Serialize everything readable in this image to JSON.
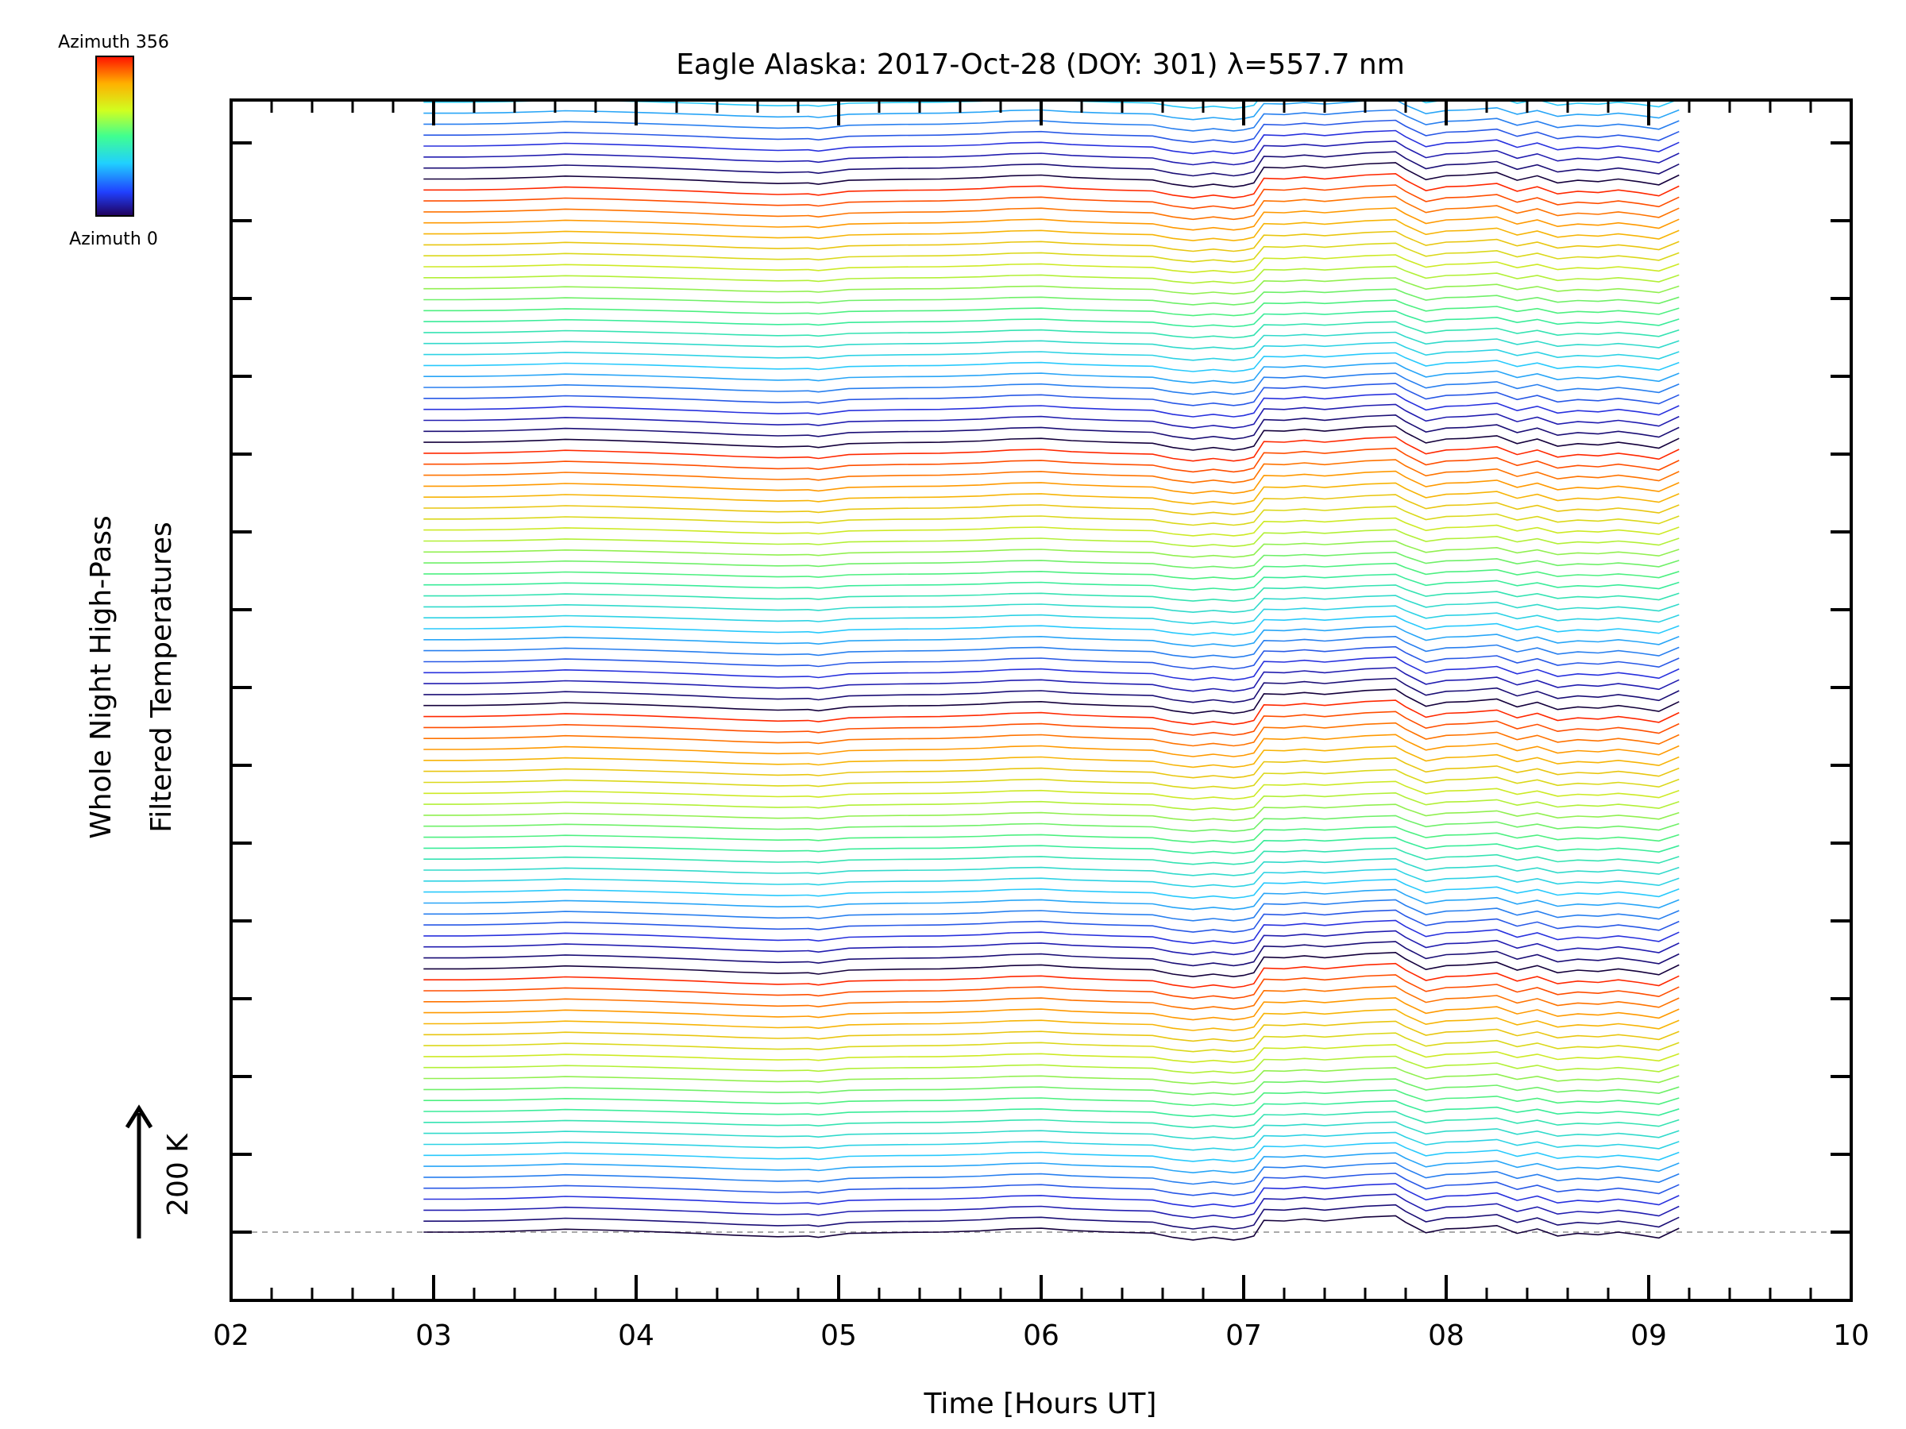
{
  "chart_data": {
    "type": "line",
    "title": "Eagle Alaska: 2017-Oct-28 (DOY: 301) λ=557.7 nm",
    "xlabel": "Time [Hours UT]",
    "ylabel_line1": "Whole Night High-Pass",
    "ylabel_line2": "Filtered Temperatures",
    "xlim": [
      2,
      10
    ],
    "x_ticks": [
      "02",
      "03",
      "04",
      "05",
      "06",
      "07",
      "08",
      "09",
      "10"
    ],
    "scale_bar_label": "200 K",
    "colorbar": {
      "top_label": "Azimuth 356",
      "bottom_label": "Azimuth 0",
      "azimuth_range": [
        0,
        356
      ]
    },
    "num_series": 144,
    "series_offset_K": 50,
    "stack_groups": 6,
    "azimuths_per_group": 24,
    "time_hours": [
      2.95,
      3.15,
      3.35,
      3.55,
      3.65,
      3.85,
      4.05,
      4.3,
      4.5,
      4.7,
      4.85,
      4.9,
      5.05,
      5.3,
      5.5,
      5.7,
      5.85,
      6.0,
      6.15,
      6.35,
      6.55,
      6.65,
      6.75,
      6.85,
      6.95,
      7.0,
      7.05,
      7.1,
      7.2,
      7.3,
      7.4,
      7.5,
      7.6,
      7.75,
      7.8,
      7.9,
      8.0,
      8.1,
      8.25,
      8.35,
      8.45,
      8.55,
      8.65,
      8.75,
      8.85,
      8.95,
      9.05,
      9.15
    ],
    "base_profile_K": [
      0,
      0,
      2,
      6,
      9,
      6,
      2,
      -4,
      -10,
      -14,
      -12,
      -16,
      -4,
      -1,
      0,
      4,
      10,
      12,
      5,
      0,
      -3,
      -16,
      -24,
      -16,
      -24,
      -20,
      -12,
      36,
      34,
      40,
      34,
      40,
      46,
      50,
      30,
      -2,
      10,
      12,
      20,
      -4,
      10,
      -12,
      -4,
      -8,
      0,
      -8,
      -18,
      12
    ]
  }
}
